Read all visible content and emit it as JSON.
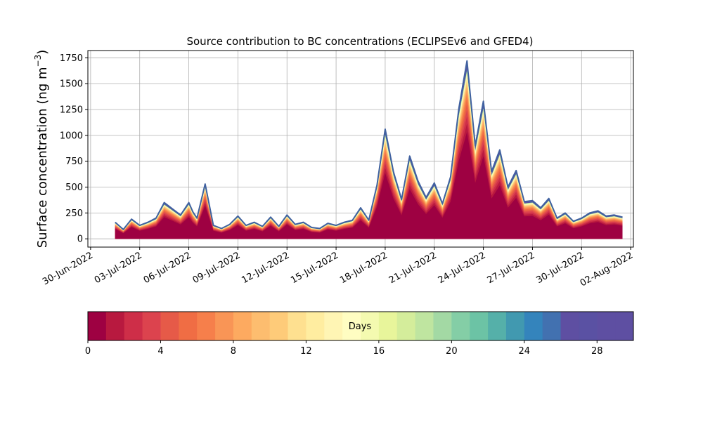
{
  "chart_data": {
    "type": "area",
    "title": "Source contribution to BC concentrations (ECLIPSEv6 and GFED4)",
    "ylabel": "Surface concentration (ng m",
    "ylabel_superscript": "−3",
    "ylabel_close": ")",
    "ylim": [
      -80,
      1820
    ],
    "yticks": [
      0,
      250,
      500,
      750,
      1000,
      1250,
      1500,
      1750
    ],
    "ytick_labels": [
      "0",
      "250",
      "500",
      "750",
      "1000",
      "1250",
      "1500",
      "1750"
    ],
    "xlim": [
      "2022-06-29T20:00",
      "2022-08-02T04:00"
    ],
    "xtick_dates": [
      "2022-06-30",
      "2022-07-03",
      "2022-07-06",
      "2022-07-09",
      "2022-07-12",
      "2022-07-15",
      "2022-07-18",
      "2022-07-21",
      "2022-07-24",
      "2022-07-27",
      "2022-07-30",
      "2022-08-02"
    ],
    "xtick_labels": [
      "30-Jun-2022",
      "03-Jul-2022",
      "06-Jul-2022",
      "09-Jul-2022",
      "12-Jul-2022",
      "15-Jul-2022",
      "18-Jul-2022",
      "21-Jul-2022",
      "24-Jul-2022",
      "27-Jul-2022",
      "30-Jul-2022",
      "02-Aug-2022"
    ],
    "grid": true,
    "total_series": {
      "name": "Total",
      "x": [
        "2022-07-01T12:00",
        "2022-07-02T00:00",
        "2022-07-02T12:00",
        "2022-07-03T00:00",
        "2022-07-03T12:00",
        "2022-07-04T00:00",
        "2022-07-04T12:00",
        "2022-07-05T00:00",
        "2022-07-05T12:00",
        "2022-07-06T00:00",
        "2022-07-06T06:00",
        "2022-07-06T12:00",
        "2022-07-07T00:00",
        "2022-07-07T12:00",
        "2022-07-08T00:00",
        "2022-07-08T12:00",
        "2022-07-09T00:00",
        "2022-07-09T12:00",
        "2022-07-10T00:00",
        "2022-07-10T12:00",
        "2022-07-11T00:00",
        "2022-07-11T12:00",
        "2022-07-12T00:00",
        "2022-07-12T12:00",
        "2022-07-13T00:00",
        "2022-07-13T12:00",
        "2022-07-14T00:00",
        "2022-07-14T12:00",
        "2022-07-15T00:00",
        "2022-07-15T12:00",
        "2022-07-16T00:00",
        "2022-07-16T12:00",
        "2022-07-17T00:00",
        "2022-07-17T12:00",
        "2022-07-18T00:00",
        "2022-07-18T12:00",
        "2022-07-19T00:00",
        "2022-07-19T12:00",
        "2022-07-20T00:00",
        "2022-07-20T12:00",
        "2022-07-21T00:00",
        "2022-07-21T12:00",
        "2022-07-22T00:00",
        "2022-07-22T12:00",
        "2022-07-23T00:00",
        "2022-07-23T12:00",
        "2022-07-24T00:00",
        "2022-07-24T12:00",
        "2022-07-25T00:00",
        "2022-07-25T12:00",
        "2022-07-26T00:00",
        "2022-07-26T12:00",
        "2022-07-27T00:00",
        "2022-07-27T12:00",
        "2022-07-28T00:00",
        "2022-07-28T12:00",
        "2022-07-29T00:00",
        "2022-07-29T12:00",
        "2022-07-30T00:00",
        "2022-07-30T12:00",
        "2022-07-31T00:00",
        "2022-07-31T12:00",
        "2022-08-01T00:00",
        "2022-08-01T12:00"
      ],
      "values": [
        160,
        90,
        190,
        130,
        160,
        200,
        350,
        290,
        230,
        350,
        260,
        200,
        530,
        130,
        100,
        140,
        220,
        130,
        160,
        120,
        210,
        120,
        230,
        140,
        160,
        110,
        100,
        150,
        130,
        160,
        180,
        300,
        180,
        520,
        1060,
        650,
        380,
        800,
        560,
        400,
        540,
        340,
        600,
        1260,
        1720,
        900,
        1330,
        650,
        860,
        500,
        660,
        360,
        370,
        300,
        390,
        200,
        250,
        170,
        200,
        250,
        270,
        220,
        230,
        210
      ]
    },
    "stack_layers": 30,
    "colorbar": {
      "label": "Days",
      "range": [
        0,
        30
      ],
      "ticks": [
        0,
        4,
        8,
        12,
        16,
        20,
        24,
        28
      ],
      "tick_labels": [
        "0",
        "4",
        "8",
        "12",
        "16",
        "20",
        "24",
        "28"
      ],
      "colors": [
        "#9e0142",
        "#b8193f",
        "#ce2e48",
        "#dc434e",
        "#e65a48",
        "#f06d44",
        "#f67f4b",
        "#f99556",
        "#fdaa60",
        "#fdbd6f",
        "#fecb79",
        "#fee090",
        "#ffeda0",
        "#fff5b4",
        "#fffdc2",
        "#f4fab0",
        "#e8f59b",
        "#d4ed9b",
        "#bfe5a0",
        "#a3d9a4",
        "#84cea6",
        "#6cc3a5",
        "#55b0a9",
        "#4199b0",
        "#3484bc",
        "#4271b0",
        "#5e4fa2",
        "#5a51a3",
        "#5e4fa2",
        "#5e4fa2"
      ]
    },
    "total_line_color": "#4061a0"
  }
}
